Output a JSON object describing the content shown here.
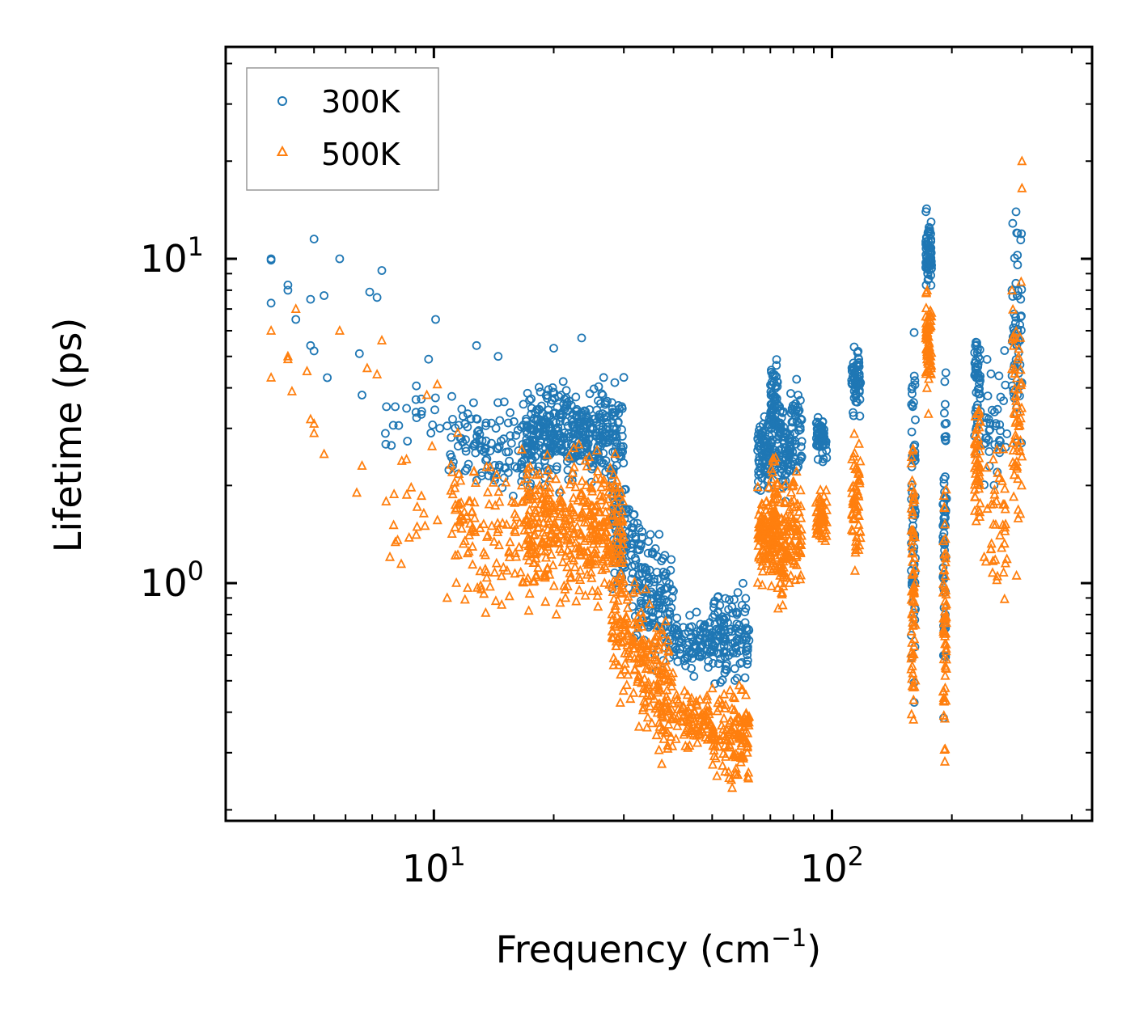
{
  "chart_data": {
    "type": "scatter",
    "title": "",
    "xlabel": "Frequency (cm",
    "xlabel_sup": "−1",
    "xlabel_end": ")",
    "ylabel": "Lifetime (ps)",
    "xscale": "log",
    "yscale": "log",
    "xlim": [
      3.0,
      450
    ],
    "ylim": [
      0.185,
      45
    ],
    "x_major_ticks": [
      {
        "value": 10,
        "base": "10",
        "exp": "1"
      },
      {
        "value": 100,
        "base": "10",
        "exp": "2"
      }
    ],
    "y_major_ticks": [
      {
        "value": 1,
        "base": "10",
        "exp": "0"
      },
      {
        "value": 10,
        "base": "10",
        "exp": "1"
      }
    ],
    "legend": {
      "position": "upper-left",
      "entries": [
        "300K",
        "500K"
      ]
    },
    "colors": {
      "300K": "#1f77b4",
      "500K": "#ff7f0e"
    },
    "series": [
      {
        "name": "300K",
        "marker": "circle",
        "explicit_points": [
          [
            3.9,
            7.3
          ],
          [
            3.9,
            10.0
          ],
          [
            4.3,
            8.0
          ],
          [
            4.3,
            8.3
          ],
          [
            4.5,
            6.5
          ],
          [
            5.0,
            11.5
          ],
          [
            4.9,
            7.5
          ],
          [
            5.0,
            5.2
          ],
          [
            4.9,
            5.4
          ],
          [
            5.3,
            7.7
          ],
          [
            5.4,
            4.3
          ],
          [
            5.8,
            10.0
          ],
          [
            6.5,
            5.1
          ],
          [
            6.6,
            3.8
          ],
          [
            6.9,
            7.9
          ],
          [
            7.2,
            7.6
          ],
          [
            7.4,
            9.2
          ],
          [
            7.6,
            3.5
          ],
          [
            8.0,
            3.5
          ],
          [
            9.7,
            4.9
          ],
          [
            10.1,
            6.5
          ],
          [
            12.8,
            5.4
          ],
          [
            14.5,
            5.0
          ],
          [
            23.5,
            5.7
          ],
          [
            20.0,
            5.3
          ],
          [
            3.9,
            9.9
          ]
        ],
        "clusters": [
          {
            "xmin": 7.5,
            "xmax": 12.0,
            "ymid": 3.0,
            "spread": 0.12,
            "n": 30
          },
          {
            "xmin": 11.0,
            "xmax": 18.0,
            "ymid": 2.6,
            "spread": 0.1,
            "n": 110
          },
          {
            "xmin": 17.0,
            "xmax": 30.0,
            "ymid": 2.9,
            "spread": 0.1,
            "n": 400
          },
          {
            "xmin": 28.0,
            "xmax": 40.0,
            "ymid": 1.1,
            "spread": 0.14,
            "n": 240,
            "slope": -1.9,
            "xref": 33.0
          },
          {
            "xmin": 40.0,
            "xmax": 50.0,
            "ymid": 0.66,
            "spread": 0.06,
            "n": 90
          },
          {
            "xmin": 50.0,
            "xmax": 62.0,
            "ymid": 0.68,
            "spread": 0.1,
            "n": 120
          },
          {
            "xmin": 65.0,
            "xmax": 70.0,
            "ymid": 2.5,
            "spread": 0.08,
            "n": 80
          },
          {
            "xmin": 70.0,
            "xmax": 73.0,
            "ymid": 3.3,
            "spread": 0.12,
            "n": 80
          },
          {
            "xmin": 73.0,
            "xmax": 78.0,
            "ymid": 2.6,
            "spread": 0.12,
            "n": 60
          },
          {
            "xmin": 78.0,
            "xmax": 84.0,
            "ymid": 2.9,
            "spread": 0.1,
            "n": 60
          },
          {
            "xmin": 91.0,
            "xmax": 97.0,
            "ymid": 2.8,
            "spread": 0.05,
            "n": 60
          },
          {
            "xmin": 112.0,
            "xmax": 118.0,
            "ymid": 4.3,
            "spread": 0.07,
            "n": 60
          },
          {
            "xmin": 158.0,
            "xmax": 162.0,
            "ymid": 1.6,
            "spread": 0.35,
            "n": 70
          },
          {
            "xmin": 172.0,
            "xmax": 178.0,
            "ymid": 10.5,
            "spread": 0.08,
            "n": 70
          },
          {
            "xmin": 190.0,
            "xmax": 194.0,
            "ymid": 1.3,
            "spread": 0.3,
            "n": 60
          },
          {
            "xmin": 228.0,
            "xmax": 236.0,
            "ymid": 4.0,
            "spread": 0.12,
            "n": 50
          },
          {
            "xmin": 240.0,
            "xmax": 275.0,
            "ymid": 3.3,
            "spread": 0.14,
            "n": 40
          },
          {
            "xmin": 283.0,
            "xmax": 300.0,
            "ymid": 6.0,
            "spread": 0.28,
            "n": 60
          }
        ]
      },
      {
        "name": "500K",
        "marker": "triangle",
        "explicit_points": [
          [
            3.9,
            4.3
          ],
          [
            3.9,
            6.0
          ],
          [
            4.3,
            4.9
          ],
          [
            4.3,
            5.0
          ],
          [
            4.4,
            3.9
          ],
          [
            4.5,
            7.0
          ],
          [
            4.8,
            4.5
          ],
          [
            4.9,
            3.2
          ],
          [
            5.0,
            3.1
          ],
          [
            5.0,
            2.9
          ],
          [
            5.3,
            2.5
          ],
          [
            5.8,
            6.0
          ],
          [
            6.4,
            1.9
          ],
          [
            6.6,
            2.3
          ],
          [
            6.8,
            4.6
          ],
          [
            7.2,
            4.4
          ],
          [
            7.4,
            5.6
          ],
          [
            9.6,
            3.8
          ],
          [
            10.2,
            4.1
          ],
          [
            10.8,
            0.9
          ],
          [
            9.5,
            1.5
          ],
          [
            20.3,
            0.8
          ],
          [
            21.4,
            0.9
          ],
          [
            300.0,
            20.0
          ],
          [
            300.0,
            16.5
          ]
        ],
        "clusters": [
          {
            "xmin": 7.5,
            "xmax": 12.0,
            "ymid": 1.8,
            "spread": 0.14,
            "n": 30
          },
          {
            "xmin": 11.0,
            "xmax": 18.0,
            "ymid": 1.4,
            "spread": 0.15,
            "n": 120
          },
          {
            "xmin": 17.0,
            "xmax": 30.0,
            "ymid": 1.45,
            "spread": 0.15,
            "n": 400
          },
          {
            "xmin": 28.0,
            "xmax": 40.0,
            "ymid": 0.6,
            "spread": 0.14,
            "n": 240,
            "slope": -1.9,
            "xref": 33.0
          },
          {
            "xmin": 40.0,
            "xmax": 50.0,
            "ymid": 0.38,
            "spread": 0.06,
            "n": 90
          },
          {
            "xmin": 50.0,
            "xmax": 62.0,
            "ymid": 0.34,
            "spread": 0.1,
            "n": 130
          },
          {
            "xmin": 65.0,
            "xmax": 70.0,
            "ymid": 1.4,
            "spread": 0.09,
            "n": 80
          },
          {
            "xmin": 70.0,
            "xmax": 73.0,
            "ymid": 1.6,
            "spread": 0.12,
            "n": 80
          },
          {
            "xmin": 73.0,
            "xmax": 78.0,
            "ymid": 1.3,
            "spread": 0.13,
            "n": 60
          },
          {
            "xmin": 78.0,
            "xmax": 84.0,
            "ymid": 1.4,
            "spread": 0.12,
            "n": 60
          },
          {
            "xmin": 91.0,
            "xmax": 97.0,
            "ymid": 1.6,
            "spread": 0.05,
            "n": 60
          },
          {
            "xmin": 112.0,
            "xmax": 118.0,
            "ymid": 1.8,
            "spread": 0.13,
            "n": 60
          },
          {
            "xmin": 158.0,
            "xmax": 162.0,
            "ymid": 1.1,
            "spread": 0.3,
            "n": 70
          },
          {
            "xmin": 172.0,
            "xmax": 178.0,
            "ymid": 5.5,
            "spread": 0.13,
            "n": 70
          },
          {
            "xmin": 190.0,
            "xmax": 194.0,
            "ymid": 0.8,
            "spread": 0.28,
            "n": 60
          },
          {
            "xmin": 228.0,
            "xmax": 236.0,
            "ymid": 2.2,
            "spread": 0.15,
            "n": 50
          },
          {
            "xmin": 240.0,
            "xmax": 275.0,
            "ymid": 1.5,
            "spread": 0.15,
            "n": 40
          },
          {
            "xmin": 283.0,
            "xmax": 300.0,
            "ymid": 3.0,
            "spread": 0.3,
            "n": 60
          }
        ]
      }
    ]
  }
}
